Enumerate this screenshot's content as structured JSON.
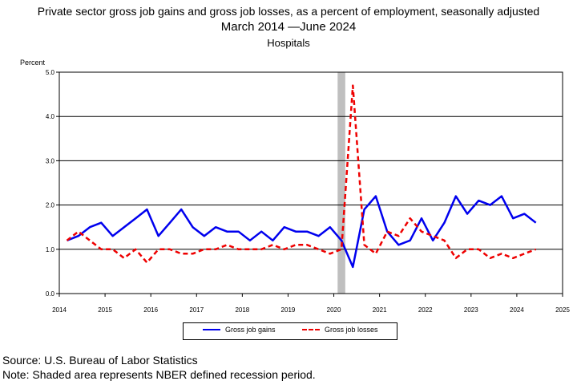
{
  "title_line1": "Private sector gross job gains and gross job losses, as a percent of employment, seasonally adjusted",
  "title_line2": "March 2014 —June 2024",
  "title_line3": "Hospitals",
  "source": "Source: U.S. Bureau of Labor Statistics",
  "note": "Note: Shaded area represents NBER defined recession period.",
  "colors": {
    "gains": "#0000ee",
    "losses": "#ee0000",
    "recession": "#bfbfbf"
  },
  "chart_data": {
    "type": "line",
    "title": "Private sector gross job gains and gross job losses, as a percent of employment, seasonally adjusted",
    "ylabel": "Percent",
    "xlim": [
      2014,
      2025
    ],
    "ylim": [
      0,
      5
    ],
    "x_ticks": [
      "2014",
      "2015",
      "2016",
      "2017",
      "2018",
      "2019",
      "2020",
      "2021",
      "2022",
      "2023",
      "2024",
      "2025"
    ],
    "y_ticks": [
      "0.0",
      "1.0",
      "2.0",
      "3.0",
      "4.0",
      "5.0"
    ],
    "grid": "horizontal",
    "legend": "bottom",
    "recession": {
      "start": "2020-02",
      "end": "2020-04"
    },
    "x": [
      "2014-03",
      "2014-06",
      "2014-09",
      "2014-12",
      "2015-03",
      "2015-06",
      "2015-09",
      "2015-12",
      "2016-03",
      "2016-06",
      "2016-09",
      "2016-12",
      "2017-03",
      "2017-06",
      "2017-09",
      "2017-12",
      "2018-03",
      "2018-06",
      "2018-09",
      "2018-12",
      "2019-03",
      "2019-06",
      "2019-09",
      "2019-12",
      "2020-03",
      "2020-06",
      "2020-09",
      "2020-12",
      "2021-03",
      "2021-06",
      "2021-09",
      "2021-12",
      "2022-03",
      "2022-06",
      "2022-09",
      "2022-12",
      "2023-03",
      "2023-06",
      "2023-09",
      "2023-12",
      "2024-03",
      "2024-06"
    ],
    "series": [
      {
        "name": "Gross job gains",
        "values": [
          1.2,
          1.3,
          1.5,
          1.6,
          1.3,
          1.5,
          1.7,
          1.9,
          1.3,
          1.6,
          1.9,
          1.5,
          1.3,
          1.5,
          1.4,
          1.4,
          1.2,
          1.4,
          1.2,
          1.5,
          1.4,
          1.4,
          1.3,
          1.5,
          1.2,
          0.6,
          1.9,
          2.2,
          1.4,
          1.1,
          1.2,
          1.7,
          1.2,
          1.6,
          2.2,
          1.8,
          2.1,
          2.0,
          2.2,
          1.7,
          1.8,
          1.6
        ]
      },
      {
        "name": "Gross job losses",
        "values": [
          1.2,
          1.4,
          1.2,
          1.0,
          1.0,
          0.8,
          1.0,
          0.7,
          1.0,
          1.0,
          0.9,
          0.9,
          1.0,
          1.0,
          1.1,
          1.0,
          1.0,
          1.0,
          1.1,
          1.0,
          1.1,
          1.1,
          1.0,
          0.9,
          1.0,
          4.7,
          1.1,
          0.9,
          1.4,
          1.3,
          1.7,
          1.4,
          1.3,
          1.2,
          0.8,
          1.0,
          1.0,
          0.8,
          0.9,
          0.8,
          0.9,
          1.0
        ]
      }
    ]
  }
}
